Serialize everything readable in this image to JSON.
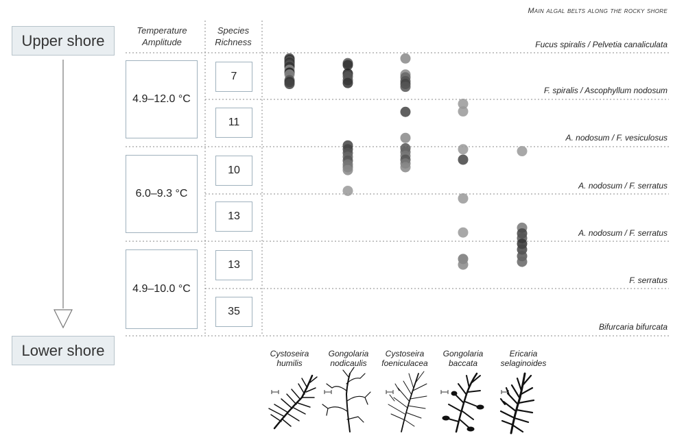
{
  "upper_label": "Upper shore",
  "lower_label": "Lower shore",
  "headers": {
    "temperature": [
      "Temperature",
      "Amplitude"
    ],
    "richness": [
      "Species",
      "Richness"
    ]
  },
  "belts_title": "Main algal belts along the rocky shore",
  "belt_labels": [
    "Fucus spiralis / Pelvetia canaliculata",
    "F. spiralis / Ascophyllum nodosum",
    "A. nodosum / F. vesiculosus",
    "A. nodosum / F. serratus",
    "A. nodosum / F. serratus",
    "F. serratus",
    "Bifurcaria bifurcata"
  ],
  "temperature_ranges": [
    "4.9–12.0 °C",
    "6.0–9.3 °C",
    "4.9–10.0 °C"
  ],
  "species_richness": [
    "7",
    "11",
    "10",
    "13",
    "13",
    "35"
  ],
  "species": [
    {
      "line1": "Cystoseira",
      "line2": "humilis"
    },
    {
      "line1": "Gongolaria",
      "line2": "nodicaulis"
    },
    {
      "line1": "Cystoseira",
      "line2": "foeniculacea"
    },
    {
      "line1": "Gongolaria",
      "line2": "baccata"
    },
    {
      "line1": "Ericaria",
      "line2": "selaginoides"
    }
  ],
  "occurrences": [
    {
      "species": "Cystoseira humilis",
      "dots": [
        [
          0.12,
          "#444"
        ],
        [
          0.15,
          "#333"
        ],
        [
          0.18,
          "#555"
        ],
        [
          0.21,
          "#333"
        ],
        [
          0.24,
          "#444"
        ],
        [
          0.27,
          "#555"
        ],
        [
          0.3,
          "#333"
        ],
        [
          0.36,
          "#888"
        ],
        [
          0.42,
          "#222"
        ],
        [
          0.46,
          "#888"
        ],
        [
          0.58,
          "#555"
        ],
        [
          0.62,
          "#333"
        ],
        [
          0.66,
          "#444"
        ]
      ]
    },
    {
      "species": "Gongolaria nodicaulis",
      "dots": [
        [
          0.22,
          "#555"
        ],
        [
          0.26,
          "#333"
        ],
        [
          0.44,
          "#222"
        ],
        [
          0.5,
          "#555"
        ],
        [
          0.58,
          "#555"
        ],
        [
          0.64,
          "#333"
        ],
        [
          1.96,
          "#444"
        ],
        [
          2.04,
          "#444"
        ],
        [
          2.12,
          "#555"
        ],
        [
          2.2,
          "#666"
        ],
        [
          2.28,
          "#555"
        ],
        [
          2.36,
          "#777"
        ],
        [
          2.42,
          "#777"
        ],
        [
          2.48,
          "#888"
        ],
        [
          2.92,
          "#999"
        ]
      ]
    },
    {
      "species": "Cystoseira foeniculacea",
      "dots": [
        [
          0.12,
          "#888"
        ],
        [
          0.46,
          "#888"
        ],
        [
          0.52,
          "#666"
        ],
        [
          0.6,
          "#555"
        ],
        [
          0.66,
          "#444"
        ],
        [
          0.72,
          "#555"
        ],
        [
          1.25,
          "#444"
        ],
        [
          1.8,
          "#888"
        ],
        [
          2.02,
          "#555"
        ],
        [
          2.1,
          "#666"
        ],
        [
          2.18,
          "#777"
        ],
        [
          2.26,
          "#555"
        ],
        [
          2.34,
          "#777"
        ],
        [
          2.42,
          "#888"
        ]
      ]
    },
    {
      "species": "Gongolaria baccata",
      "dots": [
        [
          1.08,
          "#999"
        ],
        [
          1.24,
          "#999"
        ],
        [
          2.04,
          "#999"
        ],
        [
          2.26,
          "#444"
        ],
        [
          3.08,
          "#999"
        ],
        [
          3.8,
          "#999"
        ],
        [
          4.36,
          "#777"
        ],
        [
          4.48,
          "#888"
        ]
      ]
    },
    {
      "species": "Ericaria selaginoides",
      "dots": [
        [
          2.08,
          "#999"
        ],
        [
          3.7,
          "#777"
        ],
        [
          3.82,
          "#444"
        ],
        [
          3.92,
          "#555"
        ],
        [
          4.04,
          "#333"
        ],
        [
          4.16,
          "#444"
        ],
        [
          4.3,
          "#555"
        ],
        [
          4.42,
          "#666"
        ]
      ]
    }
  ]
}
